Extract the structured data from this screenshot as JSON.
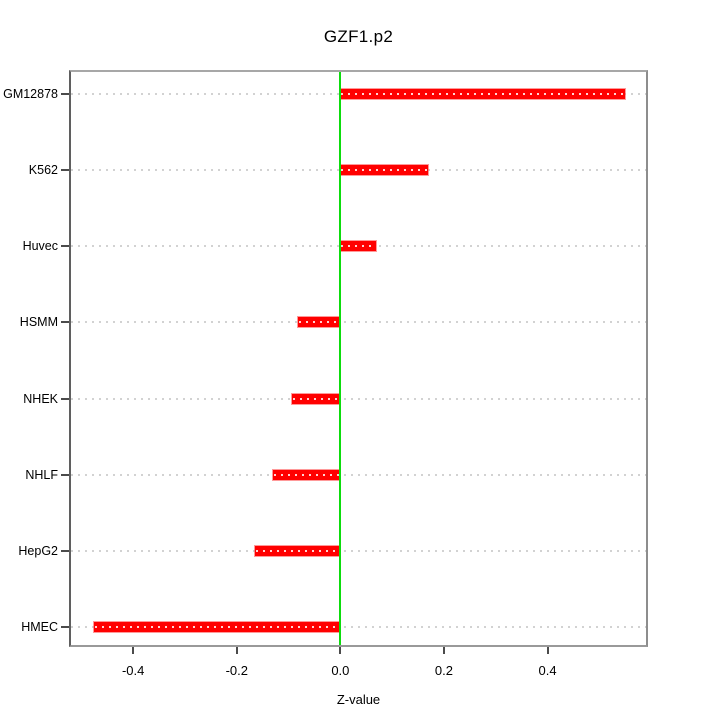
{
  "title": "GZF1.p2",
  "chart_data": {
    "type": "bar",
    "orientation": "horizontal",
    "title": "GZF1.p2",
    "xlabel": "Z-value",
    "ylabel": "",
    "categories": [
      "GM12878",
      "K562",
      "Huvec",
      "HSMM",
      "NHEK",
      "NHLF",
      "HepG2",
      "HMEC"
    ],
    "values": [
      0.55,
      0.17,
      0.069,
      -0.082,
      -0.094,
      -0.13,
      -0.165,
      -0.476
    ],
    "xlim": [
      -0.52,
      0.59
    ],
    "x_ticks": [
      -0.4,
      -0.2,
      0.0,
      0.2,
      0.4
    ],
    "x_tick_labels": [
      "-0.4",
      "-0.2",
      "0.0",
      "0.2",
      "0.4"
    ],
    "grid": "horizontal dotted line per category",
    "legend": "none",
    "zero_line_value": 0.0,
    "colors": {
      "bar": "#ff0000",
      "bar_inner_dash": "#ffeaea",
      "zero_line": "#0ddc0d",
      "grid_dots": "#d2d2d2",
      "plot_border": "#8d8d8d",
      "axis_ticks": "#4b4b4b",
      "text": "#000000",
      "background": "#ffffff"
    }
  }
}
